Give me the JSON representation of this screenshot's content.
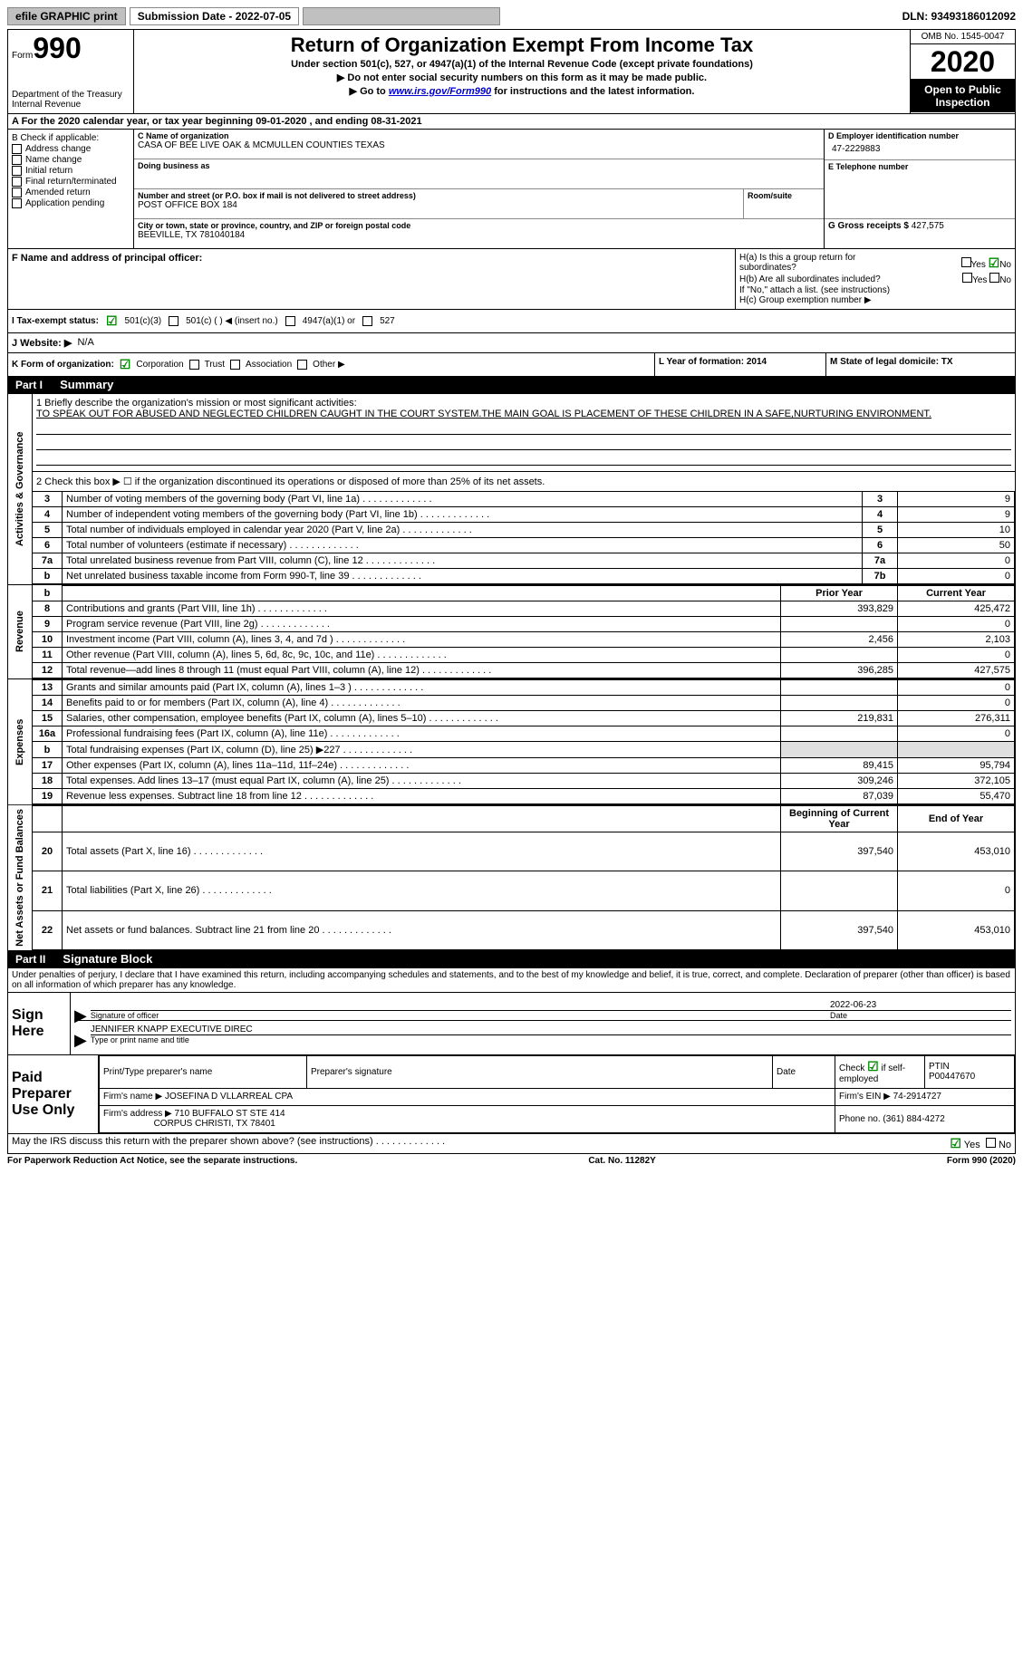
{
  "topbar": {
    "efile": "efile GRAPHIC print",
    "submission": "Submission Date - 2022-07-05",
    "dln": "DLN: 93493186012092"
  },
  "header": {
    "form_prefix": "Form",
    "form_num": "990",
    "dept": "Department of the Treasury",
    "irs": "Internal Revenue",
    "title": "Return of Organization Exempt From Income Tax",
    "subtitle": "Under section 501(c), 527, or 4947(a)(1) of the Internal Revenue Code (except private foundations)",
    "note1": "▶ Do not enter social security numbers on this form as it may be made public.",
    "note2_pre": "▶ Go to ",
    "note2_link": "www.irs.gov/Form990",
    "note2_post": " for instructions and the latest information.",
    "omb": "OMB No. 1545-0047",
    "year": "2020",
    "inspection": "Open to Public Inspection"
  },
  "row_a": "A  For the 2020 calendar year, or tax year beginning 09-01-2020     , and ending 08-31-2021",
  "section_b": {
    "label": "B Check if applicable:",
    "items": [
      "Address change",
      "Name change",
      "Initial return",
      "Final return/terminated",
      "Amended return",
      "Application pending"
    ]
  },
  "section_c": {
    "name_label": "C Name of organization",
    "name": "CASA OF BEE LIVE OAK & MCMULLEN COUNTIES TEXAS",
    "dba_label": "Doing business as",
    "addr_label": "Number and street (or P.O. box if mail is not delivered to street address)",
    "addr": "POST OFFICE BOX 184",
    "room_label": "Room/suite",
    "city_label": "City or town, state or province, country, and ZIP or foreign postal code",
    "city": "BEEVILLE, TX  781040184"
  },
  "section_d": {
    "ein_label": "D Employer identification number",
    "ein": "47-2229883",
    "phone_label": "E Telephone number",
    "receipts_label": "G Gross receipts $",
    "receipts": "427,575"
  },
  "section_f": {
    "label": "F Name and address of principal officer:"
  },
  "section_h": {
    "ha": "H(a)  Is this a group return for subordinates?",
    "hb": "H(b)  Are all subordinates included?",
    "hb_note": "If \"No,\" attach a list. (see instructions)",
    "hc": "H(c)  Group exemption number ▶",
    "yes": "Yes",
    "no": "No"
  },
  "section_i": {
    "label": "I    Tax-exempt status:",
    "opt1": "501(c)(3)",
    "opt2": "501(c) (  ) ◀ (insert no.)",
    "opt3": "4947(a)(1) or",
    "opt4": "527"
  },
  "section_j": {
    "label": "J    Website: ▶",
    "value": "N/A"
  },
  "section_k": {
    "label": "K Form of organization:",
    "corp": "Corporation",
    "trust": "Trust",
    "assoc": "Association",
    "other": "Other ▶"
  },
  "section_l": "L Year of formation: 2014",
  "section_m": "M State of legal domicile: TX",
  "part1": {
    "header": "Part I",
    "title": "Summary",
    "line1_label": "1  Briefly describe the organization's mission or most significant activities:",
    "mission": "TO SPEAK OUT FOR ABUSED AND NEGLECTED CHILDREN CAUGHT IN THE COURT SYSTEM.THE MAIN GOAL IS PLACEMENT OF THESE CHILDREN IN A SAFE,NURTURING ENVIRONMENT.",
    "line2": "2   Check this box ▶ ☐  if the organization discontinued its operations or disposed of more than 25% of its net assets.",
    "tabs": {
      "activities": "Activities & Governance",
      "revenue": "Revenue",
      "expenses": "Expenses",
      "netassets": "Net Assets or Fund Balances"
    },
    "col_prior": "Prior Year",
    "col_current": "Current Year",
    "col_begin": "Beginning of Current Year",
    "col_end": "End of Year",
    "rows_gov": [
      {
        "n": "3",
        "desc": "Number of voting members of the governing body (Part VI, line 1a)",
        "box": "3",
        "val": "9"
      },
      {
        "n": "4",
        "desc": "Number of independent voting members of the governing body (Part VI, line 1b)",
        "box": "4",
        "val": "9"
      },
      {
        "n": "5",
        "desc": "Total number of individuals employed in calendar year 2020 (Part V, line 2a)",
        "box": "5",
        "val": "10"
      },
      {
        "n": "6",
        "desc": "Total number of volunteers (estimate if necessary)",
        "box": "6",
        "val": "50"
      },
      {
        "n": "7a",
        "desc": "Total unrelated business revenue from Part VIII, column (C), line 12",
        "box": "7a",
        "val": "0"
      },
      {
        "n": "b",
        "desc": "Net unrelated business taxable income from Form 990-T, line 39",
        "box": "7b",
        "val": "0"
      }
    ],
    "rows_rev": [
      {
        "n": "8",
        "desc": "Contributions and grants (Part VIII, line 1h)",
        "prior": "393,829",
        "curr": "425,472"
      },
      {
        "n": "9",
        "desc": "Program service revenue (Part VIII, line 2g)",
        "prior": "",
        "curr": "0"
      },
      {
        "n": "10",
        "desc": "Investment income (Part VIII, column (A), lines 3, 4, and 7d )",
        "prior": "2,456",
        "curr": "2,103"
      },
      {
        "n": "11",
        "desc": "Other revenue (Part VIII, column (A), lines 5, 6d, 8c, 9c, 10c, and 11e)",
        "prior": "",
        "curr": "0"
      },
      {
        "n": "12",
        "desc": "Total revenue—add lines 8 through 11 (must equal Part VIII, column (A), line 12)",
        "prior": "396,285",
        "curr": "427,575"
      }
    ],
    "rows_exp": [
      {
        "n": "13",
        "desc": "Grants and similar amounts paid (Part IX, column (A), lines 1–3 )",
        "prior": "",
        "curr": "0"
      },
      {
        "n": "14",
        "desc": "Benefits paid to or for members (Part IX, column (A), line 4)",
        "prior": "",
        "curr": "0"
      },
      {
        "n": "15",
        "desc": "Salaries, other compensation, employee benefits (Part IX, column (A), lines 5–10)",
        "prior": "219,831",
        "curr": "276,311"
      },
      {
        "n": "16a",
        "desc": "Professional fundraising fees (Part IX, column (A), line 11e)",
        "prior": "",
        "curr": "0"
      },
      {
        "n": "b",
        "desc": "Total fundraising expenses (Part IX, column (D), line 25) ▶227",
        "prior": "SHADED",
        "curr": "SHADED"
      },
      {
        "n": "17",
        "desc": "Other expenses (Part IX, column (A), lines 11a–11d, 11f–24e)",
        "prior": "89,415",
        "curr": "95,794"
      },
      {
        "n": "18",
        "desc": "Total expenses. Add lines 13–17 (must equal Part IX, column (A), line 25)",
        "prior": "309,246",
        "curr": "372,105"
      },
      {
        "n": "19",
        "desc": "Revenue less expenses. Subtract line 18 from line 12",
        "prior": "87,039",
        "curr": "55,470"
      }
    ],
    "rows_net": [
      {
        "n": "20",
        "desc": "Total assets (Part X, line 16)",
        "prior": "397,540",
        "curr": "453,010"
      },
      {
        "n": "21",
        "desc": "Total liabilities (Part X, line 26)",
        "prior": "",
        "curr": "0"
      },
      {
        "n": "22",
        "desc": "Net assets or fund balances. Subtract line 21 from line 20",
        "prior": "397,540",
        "curr": "453,010"
      }
    ]
  },
  "part2": {
    "header": "Part II",
    "title": "Signature Block",
    "penalties": "Under penalties of perjury, I declare that I have examined this return, including accompanying schedules and statements, and to the best of my knowledge and belief, it is true, correct, and complete. Declaration of preparer (other than officer) is based on all information of which preparer has any knowledge.",
    "sign_here": "Sign Here",
    "sig_officer": "Signature of officer",
    "date": "Date",
    "date_val": "2022-06-23",
    "name": "JENNIFER KNAPP  EXECUTIVE DIREC",
    "name_label": "Type or print name and title",
    "paid": "Paid Preparer Use Only",
    "prep_name_label": "Print/Type preparer's name",
    "prep_sig_label": "Preparer's signature",
    "prep_date_label": "Date",
    "check_if": "Check ☑ if self-employed",
    "ptin_label": "PTIN",
    "ptin": "P00447670",
    "firm_name_label": "Firm's name    ▶",
    "firm_name": "JOSEFINA D VLLARREAL CPA",
    "firm_ein_label": "Firm's EIN ▶",
    "firm_ein": "74-2914727",
    "firm_addr_label": "Firm's address ▶",
    "firm_addr": "710 BUFFALO ST STE 414",
    "firm_city": "CORPUS CHRISTI, TX  78401",
    "phone_label": "Phone no.",
    "phone": "(361) 884-4272",
    "discuss": "May the IRS discuss this return with the preparer shown above? (see instructions)",
    "yes": "Yes",
    "no": "No"
  },
  "footer": {
    "left": "For Paperwork Reduction Act Notice, see the separate instructions.",
    "center": "Cat. No. 11282Y",
    "right": "Form 990 (2020)"
  }
}
